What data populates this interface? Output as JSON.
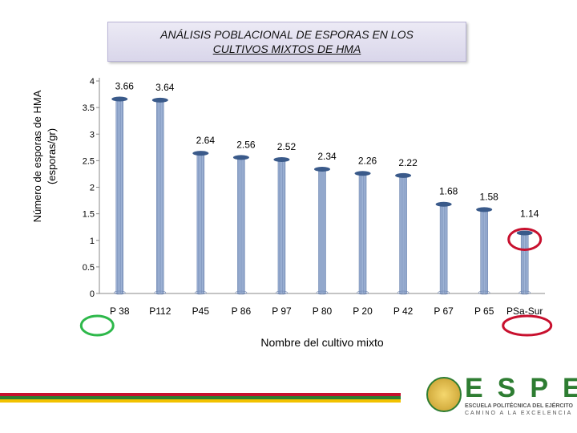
{
  "chart_data": {
    "type": "bar",
    "title_line1": "ANÁLISIS POBLACIONAL DE ESPORAS EN LOS",
    "title_line2": "CULTIVOS MIXTOS DE HMA",
    "xlabel": "Nombre del cultivo mixto",
    "ylabel_line1": "Número de esporas de HMA",
    "ylabel_line2": "(esporas/gr)",
    "categories": [
      "P 38",
      "P112",
      "P45",
      "P 86",
      "P 97",
      "P 80",
      "P 20",
      "P 42",
      "P 67",
      "P 65",
      "PSa-Sur"
    ],
    "values": [
      3.66,
      3.64,
      2.64,
      2.56,
      2.52,
      2.34,
      2.26,
      2.22,
      1.68,
      1.58,
      1.14
    ],
    "value_labels": [
      "3.66",
      "3.64",
      "2.64",
      "2.56",
      "2.52",
      "2.34",
      "2.26",
      "2.22",
      "1.68",
      "1.58",
      "1.14"
    ],
    "yticks": [
      "0",
      "0.5",
      "1",
      "1.5",
      "2",
      "2.5",
      "3",
      "3.5",
      "4"
    ],
    "ylim": [
      0,
      4
    ],
    "bar_color": "#9fb4d6",
    "cap_color": "#3a5a8a",
    "annotations": [
      {
        "category": "P 38",
        "color": "#2db84a"
      },
      {
        "category": "PSa-Sur",
        "color": "#c8102e"
      }
    ]
  },
  "footer": {
    "brand": "ESPE",
    "subtitle1": "ESCUELA POLITÉCNICA DEL EJÉRCITO",
    "subtitle2": "CAMINO A LA EXCELENCIA",
    "colors": [
      "#c8102e",
      "#2e7d32",
      "#f2c200"
    ]
  }
}
